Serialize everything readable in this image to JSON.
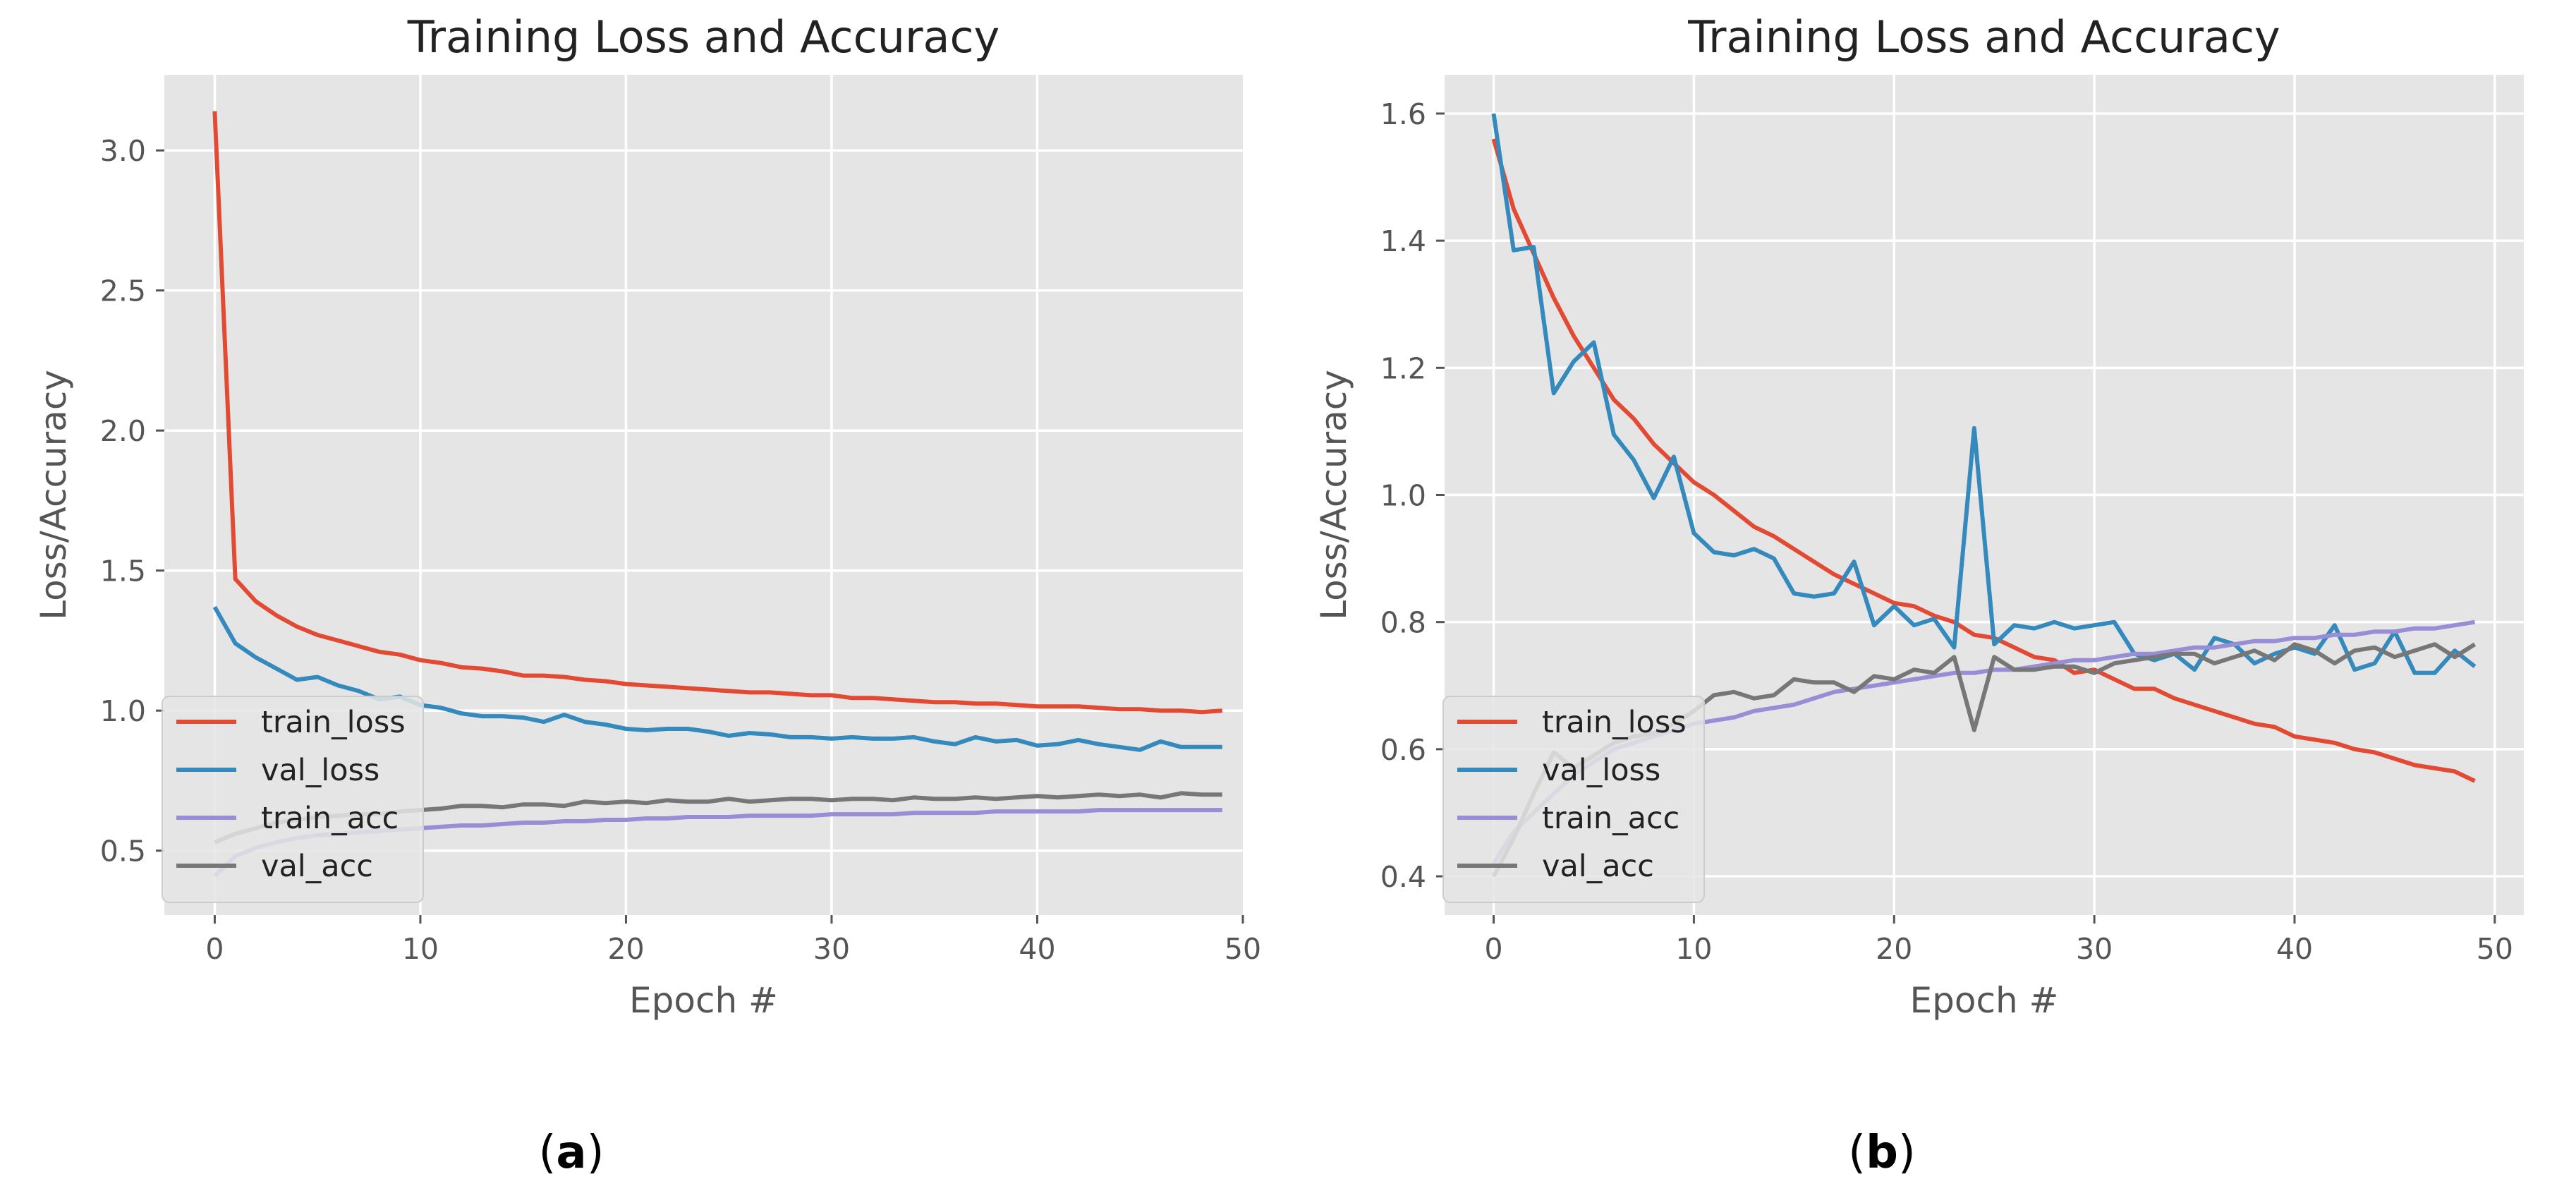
{
  "chart_data": [
    {
      "type": "line",
      "caption": "a",
      "title": "Training Loss and Accuracy",
      "xlabel": "Epoch #",
      "ylabel": "Loss/Accuracy",
      "xlim": [
        -2.45,
        50.0
      ],
      "ylim": [
        0.27,
        3.27
      ],
      "xticks": [
        0,
        10,
        20,
        30,
        40,
        50
      ],
      "xtick_labels": [
        "0",
        "10",
        "20",
        "30",
        "40",
        "50"
      ],
      "yticks": [
        0.5,
        1.0,
        1.5,
        2.0,
        2.5,
        3.0
      ],
      "ytick_labels": [
        "0.5",
        "1.0",
        "1.5",
        "2.0",
        "2.5",
        "3.0"
      ],
      "grid": true,
      "legend_position": "lower-left",
      "x": [
        0,
        1,
        2,
        3,
        4,
        5,
        6,
        7,
        8,
        9,
        10,
        11,
        12,
        13,
        14,
        15,
        16,
        17,
        18,
        19,
        20,
        21,
        22,
        23,
        24,
        25,
        26,
        27,
        28,
        29,
        30,
        31,
        32,
        33,
        34,
        35,
        36,
        37,
        38,
        39,
        40,
        41,
        42,
        43,
        44,
        45,
        46,
        47,
        48,
        49
      ],
      "series": [
        {
          "name": "train_loss",
          "color": "#E24A33",
          "values": [
            3.14,
            1.47,
            1.39,
            1.34,
            1.3,
            1.27,
            1.25,
            1.23,
            1.21,
            1.2,
            1.18,
            1.17,
            1.155,
            1.15,
            1.14,
            1.125,
            1.125,
            1.12,
            1.11,
            1.105,
            1.095,
            1.09,
            1.085,
            1.08,
            1.075,
            1.07,
            1.065,
            1.065,
            1.06,
            1.055,
            1.055,
            1.045,
            1.045,
            1.04,
            1.035,
            1.03,
            1.03,
            1.025,
            1.025,
            1.02,
            1.015,
            1.015,
            1.015,
            1.01,
            1.005,
            1.005,
            1.0,
            1.0,
            0.995,
            1.0
          ]
        },
        {
          "name": "val_loss",
          "color": "#348ABD",
          "values": [
            1.37,
            1.24,
            1.19,
            1.15,
            1.11,
            1.12,
            1.09,
            1.07,
            1.04,
            1.05,
            1.02,
            1.01,
            0.99,
            0.98,
            0.98,
            0.975,
            0.96,
            0.985,
            0.96,
            0.95,
            0.935,
            0.93,
            0.935,
            0.935,
            0.925,
            0.91,
            0.92,
            0.915,
            0.905,
            0.905,
            0.9,
            0.905,
            0.9,
            0.9,
            0.905,
            0.89,
            0.88,
            0.905,
            0.89,
            0.895,
            0.875,
            0.88,
            0.895,
            0.88,
            0.87,
            0.86,
            0.89,
            0.87,
            0.87,
            0.87
          ]
        },
        {
          "name": "train_acc",
          "color": "#988ED5",
          "values": [
            0.41,
            0.48,
            0.51,
            0.53,
            0.545,
            0.555,
            0.56,
            0.565,
            0.57,
            0.575,
            0.58,
            0.585,
            0.59,
            0.59,
            0.595,
            0.6,
            0.6,
            0.605,
            0.605,
            0.61,
            0.61,
            0.615,
            0.615,
            0.62,
            0.62,
            0.62,
            0.625,
            0.625,
            0.625,
            0.625,
            0.63,
            0.63,
            0.63,
            0.63,
            0.635,
            0.635,
            0.635,
            0.635,
            0.64,
            0.64,
            0.64,
            0.64,
            0.64,
            0.645,
            0.645,
            0.645,
            0.645,
            0.645,
            0.645,
            0.645
          ]
        },
        {
          "name": "val_acc",
          "color": "#777777",
          "values": [
            0.53,
            0.56,
            0.58,
            0.6,
            0.61,
            0.62,
            0.625,
            0.63,
            0.63,
            0.64,
            0.645,
            0.65,
            0.66,
            0.66,
            0.655,
            0.665,
            0.665,
            0.66,
            0.675,
            0.67,
            0.675,
            0.67,
            0.68,
            0.675,
            0.675,
            0.685,
            0.675,
            0.68,
            0.685,
            0.685,
            0.68,
            0.685,
            0.685,
            0.68,
            0.69,
            0.685,
            0.685,
            0.69,
            0.685,
            0.69,
            0.695,
            0.69,
            0.695,
            0.7,
            0.695,
            0.7,
            0.69,
            0.705,
            0.7,
            0.7
          ]
        }
      ]
    },
    {
      "type": "line",
      "caption": "b",
      "title": "Training Loss and Accuracy",
      "xlabel": "Epoch #",
      "ylabel": "Loss/Accuracy",
      "xlim": [
        -2.45,
        51.45
      ],
      "ylim": [
        0.339,
        1.661
      ],
      "xticks": [
        0,
        10,
        20,
        30,
        40,
        50
      ],
      "xtick_labels": [
        "0",
        "10",
        "20",
        "30",
        "40",
        "50"
      ],
      "yticks": [
        0.4,
        0.6,
        0.8,
        1.0,
        1.2,
        1.4,
        1.6
      ],
      "ytick_labels": [
        "0.4",
        "0.6",
        "0.8",
        "1.0",
        "1.2",
        "1.4",
        "1.6"
      ],
      "grid": true,
      "legend_position": "lower-left",
      "x": [
        0,
        1,
        2,
        3,
        4,
        5,
        6,
        7,
        8,
        9,
        10,
        11,
        12,
        13,
        14,
        15,
        16,
        17,
        18,
        19,
        20,
        21,
        22,
        23,
        24,
        25,
        26,
        27,
        28,
        29,
        30,
        31,
        32,
        33,
        34,
        35,
        36,
        37,
        38,
        39,
        40,
        41,
        42,
        43,
        44,
        45,
        46,
        47,
        48,
        49
      ],
      "series": [
        {
          "name": "train_loss",
          "color": "#E24A33",
          "values": [
            1.56,
            1.45,
            1.38,
            1.31,
            1.25,
            1.2,
            1.15,
            1.12,
            1.08,
            1.05,
            1.02,
            1.0,
            0.975,
            0.95,
            0.935,
            0.915,
            0.895,
            0.875,
            0.86,
            0.845,
            0.83,
            0.825,
            0.81,
            0.8,
            0.78,
            0.775,
            0.76,
            0.745,
            0.74,
            0.72,
            0.725,
            0.71,
            0.695,
            0.695,
            0.68,
            0.67,
            0.66,
            0.65,
            0.64,
            0.635,
            0.62,
            0.615,
            0.61,
            0.6,
            0.595,
            0.585,
            0.575,
            0.57,
            0.565,
            0.55
          ]
        },
        {
          "name": "val_loss",
          "color": "#348ABD",
          "values": [
            1.6,
            1.385,
            1.39,
            1.16,
            1.21,
            1.24,
            1.095,
            1.055,
            0.995,
            1.06,
            0.94,
            0.91,
            0.905,
            0.915,
            0.9,
            0.845,
            0.84,
            0.845,
            0.895,
            0.795,
            0.825,
            0.795,
            0.805,
            0.76,
            1.105,
            0.765,
            0.795,
            0.79,
            0.8,
            0.79,
            0.795,
            0.8,
            0.75,
            0.74,
            0.75,
            0.725,
            0.775,
            0.765,
            0.735,
            0.75,
            0.76,
            0.75,
            0.795,
            0.725,
            0.735,
            0.785,
            0.72,
            0.72,
            0.755,
            0.73
          ]
        },
        {
          "name": "train_acc",
          "color": "#988ED5",
          "values": [
            0.42,
            0.47,
            0.5,
            0.53,
            0.56,
            0.58,
            0.6,
            0.61,
            0.62,
            0.63,
            0.64,
            0.645,
            0.65,
            0.66,
            0.665,
            0.67,
            0.68,
            0.69,
            0.695,
            0.7,
            0.705,
            0.71,
            0.715,
            0.72,
            0.72,
            0.725,
            0.725,
            0.73,
            0.735,
            0.74,
            0.74,
            0.745,
            0.75,
            0.75,
            0.755,
            0.76,
            0.76,
            0.765,
            0.77,
            0.77,
            0.775,
            0.775,
            0.78,
            0.78,
            0.785,
            0.785,
            0.79,
            0.79,
            0.795,
            0.8
          ]
        },
        {
          "name": "val_acc",
          "color": "#777777",
          "values": [
            0.4,
            0.46,
            0.53,
            0.595,
            0.57,
            0.59,
            0.61,
            0.62,
            0.625,
            0.64,
            0.66,
            0.685,
            0.69,
            0.68,
            0.685,
            0.71,
            0.705,
            0.705,
            0.69,
            0.715,
            0.71,
            0.725,
            0.72,
            0.745,
            0.63,
            0.745,
            0.725,
            0.725,
            0.73,
            0.73,
            0.72,
            0.735,
            0.74,
            0.745,
            0.75,
            0.75,
            0.735,
            0.745,
            0.755,
            0.74,
            0.765,
            0.755,
            0.735,
            0.755,
            0.76,
            0.745,
            0.755,
            0.765,
            0.745,
            0.765
          ]
        }
      ]
    }
  ]
}
